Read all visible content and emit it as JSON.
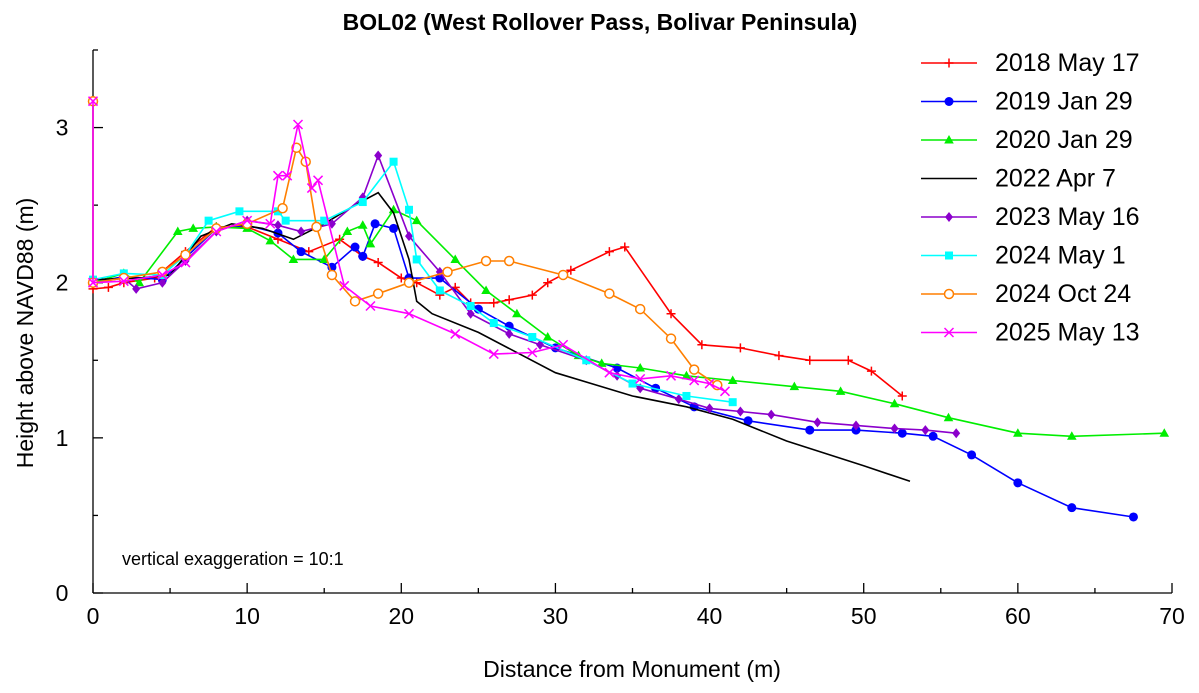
{
  "chart_data": {
    "type": "line",
    "title": "BOL02 (West Rollover Pass, Bolivar Peninsula)",
    "xlabel": "Distance from Monument (m)",
    "ylabel": "Height above NAVD88 (m)",
    "xlim": [
      0,
      70
    ],
    "ylim": [
      0,
      3.5
    ],
    "xticks": [
      0,
      10,
      20,
      30,
      40,
      50,
      60,
      70
    ],
    "yticks": [
      0,
      1,
      2,
      3
    ],
    "grid": false,
    "legend_position": "top-right",
    "annotation": "vertical exaggeration = 10:1",
    "series": [
      {
        "name": "2018 May 17",
        "color": "#ff0000",
        "marker": "plus",
        "points": [
          [
            0,
            3.17
          ],
          [
            0,
            1.96
          ],
          [
            1,
            1.97
          ],
          [
            2,
            2.0
          ],
          [
            4,
            2.03
          ],
          [
            6,
            2.2
          ],
          [
            8,
            2.36
          ],
          [
            10,
            2.36
          ],
          [
            12,
            2.28
          ],
          [
            14,
            2.2
          ],
          [
            16,
            2.28
          ],
          [
            17.5,
            2.17
          ],
          [
            18.5,
            2.13
          ],
          [
            20,
            2.03
          ],
          [
            21,
            2.0
          ],
          [
            22.5,
            1.92
          ],
          [
            23.5,
            1.97
          ],
          [
            24.5,
            1.87
          ],
          [
            26,
            1.87
          ],
          [
            27,
            1.89
          ],
          [
            28.5,
            1.92
          ],
          [
            29.5,
            2.0
          ],
          [
            31,
            2.08
          ],
          [
            33.5,
            2.2
          ],
          [
            34.5,
            2.23
          ],
          [
            37.5,
            1.8
          ],
          [
            39.5,
            1.6
          ],
          [
            42,
            1.58
          ],
          [
            44.5,
            1.53
          ],
          [
            46.5,
            1.5
          ],
          [
            49,
            1.5
          ],
          [
            50.5,
            1.43
          ],
          [
            52.5,
            1.27
          ]
        ]
      },
      {
        "name": "2019 Jan 29",
        "color": "#0000ff",
        "marker": "circle",
        "points": [
          [
            0,
            3.17
          ],
          [
            0,
            2.0
          ],
          [
            2,
            2.04
          ],
          [
            4.5,
            2.02
          ],
          [
            6,
            2.16
          ],
          [
            8,
            2.35
          ],
          [
            10,
            2.37
          ],
          [
            12,
            2.32
          ],
          [
            13.5,
            2.2
          ],
          [
            15.5,
            2.1
          ],
          [
            17,
            2.23
          ],
          [
            17.5,
            2.17
          ],
          [
            18.3,
            2.38
          ],
          [
            19.5,
            2.35
          ],
          [
            20.5,
            2.03
          ],
          [
            22.5,
            2.03
          ],
          [
            25,
            1.83
          ],
          [
            27,
            1.72
          ],
          [
            30,
            1.58
          ],
          [
            34,
            1.45
          ],
          [
            36.5,
            1.32
          ],
          [
            39,
            1.2
          ],
          [
            42.5,
            1.11
          ],
          [
            46.5,
            1.05
          ],
          [
            49.5,
            1.05
          ],
          [
            52.5,
            1.03
          ],
          [
            54.5,
            1.01
          ],
          [
            57,
            0.89
          ],
          [
            60,
            0.71
          ],
          [
            63.5,
            0.55
          ],
          [
            67.5,
            0.49
          ]
        ]
      },
      {
        "name": "2020 Jan 29",
        "color": "#00ee00",
        "marker": "triangle",
        "points": [
          [
            0,
            3.17
          ],
          [
            0,
            2.0
          ],
          [
            2,
            2.06
          ],
          [
            3,
            2.0
          ],
          [
            5.5,
            2.33
          ],
          [
            6.5,
            2.35
          ],
          [
            8,
            2.36
          ],
          [
            10,
            2.35
          ],
          [
            11.5,
            2.27
          ],
          [
            13,
            2.15
          ],
          [
            15,
            2.15
          ],
          [
            16.5,
            2.33
          ],
          [
            17.5,
            2.37
          ],
          [
            18,
            2.25
          ],
          [
            19.5,
            2.47
          ],
          [
            21,
            2.4
          ],
          [
            23.5,
            2.15
          ],
          [
            25.5,
            1.95
          ],
          [
            27.5,
            1.8
          ],
          [
            29.5,
            1.65
          ],
          [
            31.5,
            1.53
          ],
          [
            33,
            1.48
          ],
          [
            35.5,
            1.45
          ],
          [
            38.5,
            1.4
          ],
          [
            41.5,
            1.37
          ],
          [
            45.5,
            1.33
          ],
          [
            48.5,
            1.3
          ],
          [
            52,
            1.22
          ],
          [
            55.5,
            1.13
          ],
          [
            60,
            1.03
          ],
          [
            63.5,
            1.01
          ],
          [
            69.5,
            1.03
          ]
        ]
      },
      {
        "name": "2022 Apr 7",
        "color": "#000000",
        "marker": "none",
        "points": [
          [
            0,
            3.17
          ],
          [
            0,
            2.02
          ],
          [
            3,
            2.03
          ],
          [
            5,
            2.05
          ],
          [
            7,
            2.3
          ],
          [
            9,
            2.38
          ],
          [
            11,
            2.35
          ],
          [
            13,
            2.28
          ],
          [
            15,
            2.38
          ],
          [
            17,
            2.5
          ],
          [
            18.5,
            2.58
          ],
          [
            19.5,
            2.45
          ],
          [
            20.5,
            2.15
          ],
          [
            21,
            1.88
          ],
          [
            22,
            1.8
          ],
          [
            25,
            1.68
          ],
          [
            30,
            1.42
          ],
          [
            35,
            1.27
          ],
          [
            38.5,
            1.2
          ],
          [
            41.5,
            1.12
          ],
          [
            45,
            0.98
          ],
          [
            50,
            0.82
          ],
          [
            53,
            0.72
          ]
        ]
      },
      {
        "name": "2023 May 16",
        "color": "#8b00cc",
        "marker": "diamond",
        "points": [
          [
            0,
            3.17
          ],
          [
            0,
            2.0
          ],
          [
            2,
            2.03
          ],
          [
            2.8,
            1.96
          ],
          [
            4.5,
            2.0
          ],
          [
            6,
            2.14
          ],
          [
            8,
            2.33
          ],
          [
            10,
            2.4
          ],
          [
            12,
            2.37
          ],
          [
            13.5,
            2.33
          ],
          [
            15.5,
            2.38
          ],
          [
            17.5,
            2.55
          ],
          [
            18.5,
            2.82
          ],
          [
            20.5,
            2.3
          ],
          [
            22.5,
            2.07
          ],
          [
            24.5,
            1.8
          ],
          [
            27,
            1.67
          ],
          [
            29,
            1.6
          ],
          [
            32,
            1.5
          ],
          [
            34,
            1.4
          ],
          [
            35.5,
            1.32
          ],
          [
            38,
            1.25
          ],
          [
            40,
            1.19
          ],
          [
            42,
            1.17
          ],
          [
            44,
            1.15
          ],
          [
            47,
            1.1
          ],
          [
            49.5,
            1.08
          ],
          [
            52,
            1.06
          ],
          [
            54,
            1.05
          ],
          [
            56,
            1.03
          ]
        ]
      },
      {
        "name": "2024 May 1",
        "color": "#00ffff",
        "marker": "square",
        "points": [
          [
            0,
            3.17
          ],
          [
            0,
            2.02
          ],
          [
            2,
            2.06
          ],
          [
            4.5,
            2.05
          ],
          [
            6,
            2.18
          ],
          [
            7.5,
            2.4
          ],
          [
            9.5,
            2.46
          ],
          [
            12,
            2.46
          ],
          [
            12.5,
            2.4
          ],
          [
            15,
            2.4
          ],
          [
            17.5,
            2.52
          ],
          [
            19.5,
            2.78
          ],
          [
            20.5,
            2.47
          ],
          [
            21,
            2.15
          ],
          [
            22.5,
            1.95
          ],
          [
            24.5,
            1.85
          ],
          [
            26,
            1.74
          ],
          [
            28.5,
            1.65
          ],
          [
            32,
            1.5
          ],
          [
            35,
            1.35
          ],
          [
            38.5,
            1.27
          ],
          [
            41.5,
            1.23
          ]
        ]
      },
      {
        "name": "2024 Oct 24",
        "color": "#ff7f00",
        "marker": "circle-open",
        "points": [
          [
            0,
            3.17
          ],
          [
            0,
            2.0
          ],
          [
            2,
            2.03
          ],
          [
            4.5,
            2.07
          ],
          [
            6,
            2.18
          ],
          [
            8,
            2.35
          ],
          [
            10,
            2.38
          ],
          [
            12.3,
            2.48
          ],
          [
            13.2,
            2.87
          ],
          [
            13.8,
            2.78
          ],
          [
            14.5,
            2.36
          ],
          [
            15.5,
            2.05
          ],
          [
            17,
            1.88
          ],
          [
            18.5,
            1.93
          ],
          [
            20.5,
            2.0
          ],
          [
            23,
            2.07
          ],
          [
            25.5,
            2.14
          ],
          [
            27,
            2.14
          ],
          [
            30.5,
            2.05
          ],
          [
            33.5,
            1.93
          ],
          [
            35.5,
            1.83
          ],
          [
            37.5,
            1.64
          ],
          [
            39,
            1.44
          ],
          [
            40.5,
            1.34
          ]
        ]
      },
      {
        "name": "2025 May 13",
        "color": "#ff00ff",
        "marker": "x",
        "points": [
          [
            0,
            3.17
          ],
          [
            0,
            2.0
          ],
          [
            2,
            2.01
          ],
          [
            4.5,
            2.05
          ],
          [
            6,
            2.13
          ],
          [
            8,
            2.33
          ],
          [
            10,
            2.4
          ],
          [
            11.5,
            2.38
          ],
          [
            12,
            2.69
          ],
          [
            12.6,
            2.69
          ],
          [
            13.3,
            3.02
          ],
          [
            14.2,
            2.61
          ],
          [
            14.6,
            2.66
          ],
          [
            16.3,
            1.98
          ],
          [
            18,
            1.85
          ],
          [
            20.5,
            1.8
          ],
          [
            23.5,
            1.67
          ],
          [
            26,
            1.54
          ],
          [
            28.5,
            1.55
          ],
          [
            30.5,
            1.6
          ],
          [
            33.5,
            1.42
          ],
          [
            35.5,
            1.38
          ],
          [
            37.5,
            1.4
          ],
          [
            39,
            1.37
          ],
          [
            40,
            1.35
          ],
          [
            41,
            1.3
          ]
        ]
      }
    ]
  }
}
